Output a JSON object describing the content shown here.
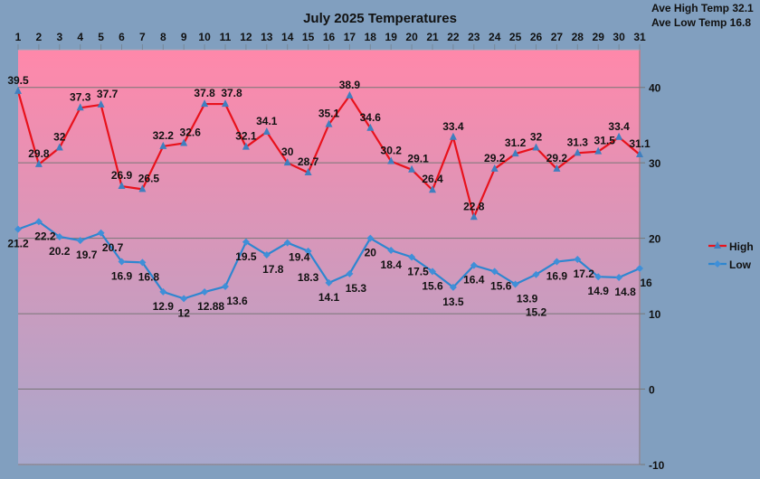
{
  "chart_data": {
    "type": "line",
    "title": "July 2025 Temperatures",
    "x": [
      1,
      2,
      3,
      4,
      5,
      6,
      7,
      8,
      9,
      10,
      11,
      12,
      13,
      14,
      15,
      16,
      17,
      18,
      19,
      20,
      21,
      22,
      23,
      24,
      25,
      26,
      27,
      28,
      29,
      30,
      31
    ],
    "series": [
      {
        "name": "High",
        "color": "#e8121c",
        "marker": "triangle",
        "values": [
          39.5,
          29.8,
          32,
          37.3,
          37.7,
          26.9,
          26.5,
          32.2,
          32.6,
          37.8,
          37.8,
          32.1,
          34.1,
          30,
          28.7,
          35.1,
          38.9,
          34.6,
          30.2,
          29.1,
          26.4,
          33.4,
          22.8,
          29.2,
          31.2,
          32,
          29.2,
          31.3,
          31.5,
          33.4,
          31.1
        ]
      },
      {
        "name": "Low",
        "color": "#2e86d0",
        "marker": "diamond",
        "values": [
          21.2,
          22.2,
          20.2,
          19.7,
          20.7,
          16.9,
          16.8,
          12.9,
          12,
          12.88,
          13.6,
          19.5,
          17.8,
          19.4,
          18.3,
          14.1,
          15.3,
          20,
          18.4,
          17.5,
          15.6,
          13.5,
          16.4,
          15.6,
          13.9,
          15.2,
          16.9,
          17.2,
          14.9,
          14.8,
          16
        ]
      }
    ],
    "ylim": [
      -10,
      45
    ],
    "yticks": [
      -10,
      0,
      10,
      20,
      30,
      40
    ],
    "xaxis_position": "top",
    "yaxis_position": "right",
    "grid": true,
    "legend": "right",
    "background_gradient": [
      "#ff88aa",
      "#a8a8cc"
    ]
  },
  "stats": {
    "ave_high": "Ave High Temp 32.1",
    "ave_low": "Ave Low Temp 16.8"
  }
}
